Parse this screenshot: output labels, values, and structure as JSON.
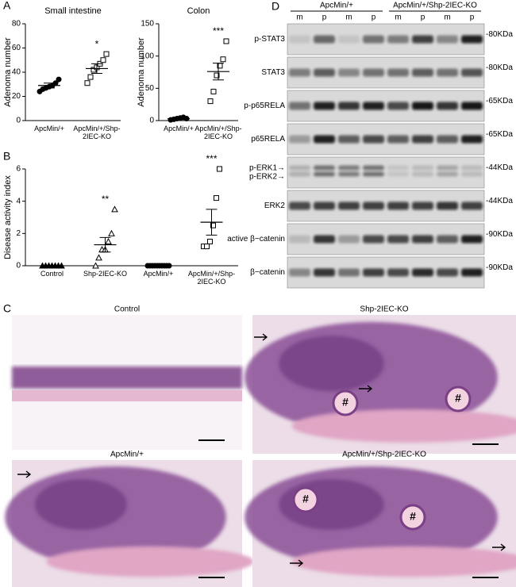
{
  "panel_labels": [
    "A",
    "B",
    "C",
    "D"
  ],
  "chart_data": [
    {
      "type": "scatter",
      "title": "Small intestine",
      "y_label": "Adenoma number",
      "ylim": [
        0,
        80
      ],
      "yticks": [
        0,
        20,
        40,
        60,
        80
      ],
      "categories": [
        "ApcMin/+",
        "ApcMin/+/Shp-2IEC-KO"
      ],
      "markers": [
        "circle",
        "square"
      ],
      "filled": [
        true,
        false
      ],
      "points": [
        [
          24,
          26,
          27,
          28,
          29,
          31,
          34
        ],
        [
          31,
          36,
          42,
          44,
          47,
          50,
          55
        ]
      ],
      "mean": [
        29,
        43
      ],
      "sem": [
        2,
        4
      ],
      "annotations": [
        null,
        "*"
      ],
      "color": "#000000"
    },
    {
      "type": "scatter",
      "title": "Colon",
      "y_label": "Adenoma number",
      "ylim": [
        0,
        150
      ],
      "yticks": [
        0,
        50,
        100,
        150
      ],
      "categories": [
        "ApcMin/+",
        "ApcMin/+/Shp-2IEC-KO"
      ],
      "markers": [
        "circle",
        "square"
      ],
      "filled": [
        true,
        false
      ],
      "points": [
        [
          1,
          2,
          3,
          4,
          5,
          3
        ],
        [
          30,
          45,
          70,
          85,
          95,
          123
        ]
      ],
      "mean": [
        3,
        76
      ],
      "sem": [
        1,
        13
      ],
      "annotations": [
        null,
        "***"
      ],
      "color": "#000000"
    },
    {
      "type": "scatter",
      "y_label": "Disease activity index",
      "ylim": [
        0,
        6
      ],
      "yticks": [
        0,
        2,
        4,
        6
      ],
      "categories": [
        "Control",
        "Shp-2IEC-KO",
        "ApcMin/+",
        "ApcMin/+/Shp-2IEC-KO"
      ],
      "markers": [
        "triangle",
        "triangle",
        "circle",
        "square"
      ],
      "filled": [
        true,
        false,
        true,
        false
      ],
      "points": [
        [
          0,
          0,
          0,
          0,
          0,
          0,
          0
        ],
        [
          0,
          0.5,
          1,
          1,
          1.5,
          2,
          3.5
        ],
        [
          0,
          0,
          0,
          0,
          0,
          0,
          0,
          0,
          0,
          0
        ],
        [
          1.2,
          1.2,
          1.5,
          2.5,
          4.2,
          6
        ]
      ],
      "mean": [
        0,
        1.3,
        0,
        2.7
      ],
      "sem": [
        0,
        0.45,
        0,
        0.8
      ],
      "annotations": [
        null,
        "**",
        null,
        "***"
      ],
      "color": "#000000"
    }
  ],
  "blot": {
    "groups": [
      "ApcMin/+",
      "ApcMin/+/Shp-2IEC-KO"
    ],
    "lanes": [
      "m",
      "p",
      "m",
      "p",
      "m",
      "p",
      "m",
      "p"
    ],
    "rows": [
      {
        "labels": [
          "p-STAT3"
        ],
        "size": "-80KDa"
      },
      {
        "labels": [
          "STAT3"
        ],
        "size": "-80KDa"
      },
      {
        "labels": [
          "p-p65RELA"
        ],
        "size": "-65KDa"
      },
      {
        "labels": [
          "p65RELA"
        ],
        "size": "-65KDa"
      },
      {
        "labels": [
          "p-ERK1→",
          "p-ERK2→"
        ],
        "size": "-44KDa"
      },
      {
        "labels": [
          "ERK2"
        ],
        "size": "-44KDa"
      },
      {
        "labels": [
          "active β−catenin"
        ],
        "size": "-90KDa"
      },
      {
        "labels": [
          "β−catenin"
        ],
        "size": "-90KDa"
      }
    ]
  },
  "histology": {
    "panels": [
      {
        "title": "Control"
      },
      {
        "title": "Shp-2IEC-KO",
        "marks": [
          "#",
          "#"
        ]
      },
      {
        "title": "ApcMin/+"
      },
      {
        "title": "ApcMin/+/Shp-2IEC-KO",
        "marks": [
          "#",
          "#"
        ]
      }
    ]
  }
}
